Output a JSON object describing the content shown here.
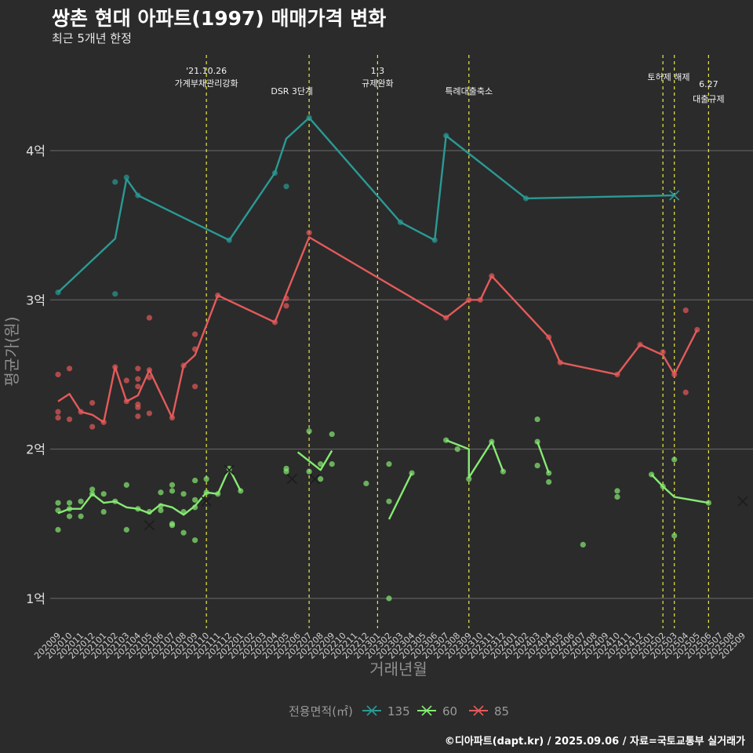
{
  "title": "쌍촌 현대 아파트(1997) 매매가격 변화",
  "subtitle": "최근 5개년 한정",
  "caption": "©디아파트(dapt.kr) / 2025.09.06 / 자료=국토교통부 실거래가",
  "colors": {
    "135": "#2a9a94",
    "60": "#86ea72",
    "85": "#e55a5a",
    "vline": "#e8e84a",
    "grid": "#6a6a6a"
  },
  "chart_data": {
    "type": "line",
    "xlabel": "거래년월",
    "ylabel": "평균가(원)",
    "ylim": [
      0.8,
      4.9
    ],
    "y_ticks": [
      {
        "value": 1,
        "label": "1억"
      },
      {
        "value": 2,
        "label": "2억"
      },
      {
        "value": 3,
        "label": "3억"
      },
      {
        "value": 4,
        "label": "4억"
      }
    ],
    "x_categories": [
      "202009",
      "202010",
      "202011",
      "202012",
      "202101",
      "202102",
      "202103",
      "202104",
      "202105",
      "202106",
      "202107",
      "202108",
      "202109",
      "202110",
      "202111",
      "202112",
      "202201",
      "202202",
      "202203",
      "202204",
      "202205",
      "202206",
      "202207",
      "202208",
      "202209",
      "202210",
      "202211",
      "202212",
      "202301",
      "202302",
      "202303",
      "202304",
      "202305",
      "202306",
      "202307",
      "202308",
      "202309",
      "202310",
      "202311",
      "202312",
      "202401",
      "202402",
      "202403",
      "202404",
      "202405",
      "202406",
      "202407",
      "202408",
      "202409",
      "202410",
      "202411",
      "202412",
      "202501",
      "202502",
      "202503",
      "202504",
      "202505",
      "202506",
      "202507",
      "202508",
      "202509"
    ],
    "legend": {
      "title": "전용면적(㎡)",
      "position": "bottom",
      "items": [
        "135",
        "60",
        "85"
      ]
    },
    "annotations": [
      {
        "x": 13,
        "lines": [
          "'21.10.26",
          "가계부채관리강화"
        ]
      },
      {
        "x": 20.5,
        "lines": [
          "DSR 3단계"
        ]
      },
      {
        "x": 28,
        "lines": [
          "1.3",
          "규제완화"
        ]
      },
      {
        "x": 36,
        "lines": [
          "특례대출축소"
        ]
      },
      {
        "x": 53.5,
        "lines": [
          "토허제 해제"
        ]
      },
      {
        "x": 57,
        "lines": [
          "6.27",
          "대출규제"
        ]
      }
    ],
    "vlines": [
      13,
      22,
      28,
      36,
      53,
      54,
      57
    ],
    "series": [
      {
        "name": "135",
        "line": [
          [
            0,
            3.05
          ],
          [
            5,
            3.41
          ],
          [
            6,
            3.81
          ],
          [
            7,
            3.7
          ],
          [
            15,
            3.4
          ],
          [
            19,
            3.85
          ],
          [
            20,
            4.08
          ],
          [
            22,
            4.22
          ],
          [
            30,
            3.52
          ],
          [
            33,
            3.4
          ],
          [
            34,
            4.1
          ],
          [
            41,
            3.68
          ],
          [
            54,
            3.7
          ]
        ],
        "points": [
          [
            0,
            3.05
          ],
          [
            5,
            3.79
          ],
          [
            5,
            3.04
          ],
          [
            6,
            3.82
          ],
          [
            7,
            3.7
          ],
          [
            15,
            3.4
          ],
          [
            19,
            3.85
          ],
          [
            20,
            3.76
          ],
          [
            22,
            4.22
          ],
          [
            30,
            3.52
          ],
          [
            33,
            3.4
          ],
          [
            34,
            4.1
          ],
          [
            41,
            3.68
          ]
        ],
        "crosses": [
          [
            54,
            3.7
          ]
        ]
      },
      {
        "name": "60",
        "line": [
          [
            [
              0,
              1.57
            ],
            [
              1,
              1.6
            ],
            [
              2,
              1.6
            ],
            [
              3,
              1.7
            ],
            [
              4,
              1.64
            ],
            [
              5,
              1.65
            ],
            [
              6,
              1.61
            ],
            [
              7,
              1.6
            ],
            [
              8,
              1.57
            ],
            [
              9,
              1.63
            ],
            [
              10,
              1.61
            ],
            [
              11,
              1.56
            ],
            [
              12,
              1.62
            ],
            [
              13,
              1.71
            ],
            [
              14,
              1.7
            ],
            [
              15,
              1.87
            ],
            [
              16,
              1.72
            ]
          ],
          [
            [
              21,
              1.98
            ],
            [
              23,
              1.86
            ],
            [
              24,
              1.99
            ]
          ],
          [
            [
              29,
              1.53
            ],
            [
              31,
              1.84
            ]
          ],
          [
            [
              34,
              2.06
            ],
            [
              35,
              2.03
            ],
            [
              36,
              2.0
            ],
            [
              36,
              1.81
            ],
            [
              38,
              2.05
            ],
            [
              39,
              1.85
            ]
          ],
          [
            [
              42,
              2.05
            ],
            [
              43,
              1.84
            ]
          ],
          [
            [
              52,
              1.83
            ],
            [
              53,
              1.75
            ],
            [
              54,
              1.68
            ],
            [
              57,
              1.64
            ]
          ]
        ],
        "points": [
          [
            0,
            1.64
          ],
          [
            0,
            1.59
          ],
          [
            0,
            1.46
          ],
          [
            1,
            1.64
          ],
          [
            1,
            1.6
          ],
          [
            1,
            1.55
          ],
          [
            2,
            1.65
          ],
          [
            2,
            1.55
          ],
          [
            3,
            1.73
          ],
          [
            3,
            1.7
          ],
          [
            4,
            1.7
          ],
          [
            4,
            1.58
          ],
          [
            5,
            1.65
          ],
          [
            6,
            1.76
          ],
          [
            6,
            1.46
          ],
          [
            7,
            1.6
          ],
          [
            8,
            1.58
          ],
          [
            9,
            1.71
          ],
          [
            9,
            1.62
          ],
          [
            9,
            1.59
          ],
          [
            10,
            1.76
          ],
          [
            10,
            1.72
          ],
          [
            10,
            1.5
          ],
          [
            10,
            1.49
          ],
          [
            11,
            1.7
          ],
          [
            11,
            1.58
          ],
          [
            11,
            1.44
          ],
          [
            12,
            1.79
          ],
          [
            12,
            1.66
          ],
          [
            12,
            1.61
          ],
          [
            12,
            1.39
          ],
          [
            13,
            1.8
          ],
          [
            13,
            1.71
          ],
          [
            14,
            1.7
          ],
          [
            15,
            1.87
          ],
          [
            16,
            1.72
          ],
          [
            20,
            1.87
          ],
          [
            20,
            1.85
          ],
          [
            22,
            2.12
          ],
          [
            22,
            1.85
          ],
          [
            24,
            2.1
          ],
          [
            24,
            1.9
          ],
          [
            23,
            1.9
          ],
          [
            23,
            1.8
          ],
          [
            27,
            1.77
          ],
          [
            29,
            1.9
          ],
          [
            29,
            1.65
          ],
          [
            29,
            1.0
          ],
          [
            31,
            1.84
          ],
          [
            34,
            2.06
          ],
          [
            35,
            2.0
          ],
          [
            36,
            1.8
          ],
          [
            38,
            2.05
          ],
          [
            39,
            1.85
          ],
          [
            42,
            2.2
          ],
          [
            42,
            2.05
          ],
          [
            42,
            1.89
          ],
          [
            43,
            1.84
          ],
          [
            43,
            1.78
          ],
          [
            46,
            1.36
          ],
          [
            49,
            1.72
          ],
          [
            49,
            1.68
          ],
          [
            52,
            1.83
          ],
          [
            53,
            1.75
          ],
          [
            54,
            1.93
          ],
          [
            54,
            1.42
          ],
          [
            57,
            1.64
          ]
        ],
        "crosses": [
          [
            8,
            1.49
          ],
          [
            13,
            1.65
          ],
          [
            15,
            1.86
          ],
          [
            20.5,
            1.8
          ],
          [
            22.5,
            1.8
          ],
          [
            60,
            1.65
          ]
        ]
      },
      {
        "name": "85",
        "line": [
          [
            0,
            2.32
          ],
          [
            1,
            2.37
          ],
          [
            2,
            2.25
          ],
          [
            3,
            2.23
          ],
          [
            4,
            2.18
          ],
          [
            5,
            2.55
          ],
          [
            6,
            2.32
          ],
          [
            7,
            2.36
          ],
          [
            8,
            2.53
          ],
          [
            9,
            2.37
          ],
          [
            10,
            2.21
          ],
          [
            11,
            2.56
          ],
          [
            12,
            2.63
          ],
          [
            14,
            3.03
          ],
          [
            19,
            2.85
          ],
          [
            22,
            3.42
          ],
          [
            34,
            2.88
          ],
          [
            36,
            3.0
          ],
          [
            37,
            3.0
          ],
          [
            38,
            3.16
          ],
          [
            43,
            2.75
          ],
          [
            44,
            2.58
          ],
          [
            49,
            2.5
          ],
          [
            51,
            2.7
          ],
          [
            53,
            2.63
          ],
          [
            54,
            2.5
          ],
          [
            56,
            2.8
          ]
        ],
        "points": [
          [
            0,
            2.5
          ],
          [
            0,
            2.25
          ],
          [
            0,
            2.21
          ],
          [
            1,
            2.54
          ],
          [
            1,
            2.2
          ],
          [
            2,
            2.25
          ],
          [
            3,
            2.31
          ],
          [
            3,
            2.15
          ],
          [
            4,
            2.18
          ],
          [
            5,
            2.55
          ],
          [
            6,
            2.46
          ],
          [
            6,
            2.32
          ],
          [
            7,
            2.54
          ],
          [
            7,
            2.47
          ],
          [
            7,
            2.42
          ],
          [
            7,
            2.3
          ],
          [
            7,
            2.28
          ],
          [
            7,
            2.22
          ],
          [
            8,
            2.88
          ],
          [
            8,
            2.53
          ],
          [
            8,
            2.48
          ],
          [
            8,
            2.24
          ],
          [
            10,
            2.21
          ],
          [
            11,
            2.56
          ],
          [
            12,
            2.77
          ],
          [
            12,
            2.67
          ],
          [
            12,
            2.42
          ],
          [
            14,
            3.03
          ],
          [
            19,
            2.85
          ],
          [
            20,
            3.01
          ],
          [
            20,
            2.96
          ],
          [
            22,
            3.45
          ],
          [
            34,
            2.88
          ],
          [
            36,
            3.0
          ],
          [
            37,
            3.0
          ],
          [
            38,
            3.16
          ],
          [
            43,
            2.75
          ],
          [
            44,
            2.58
          ],
          [
            49,
            2.5
          ],
          [
            51,
            2.7
          ],
          [
            53,
            2.65
          ],
          [
            54,
            2.5
          ],
          [
            55,
            2.93
          ],
          [
            55,
            2.38
          ],
          [
            56,
            2.8
          ]
        ],
        "crosses": []
      }
    ]
  }
}
